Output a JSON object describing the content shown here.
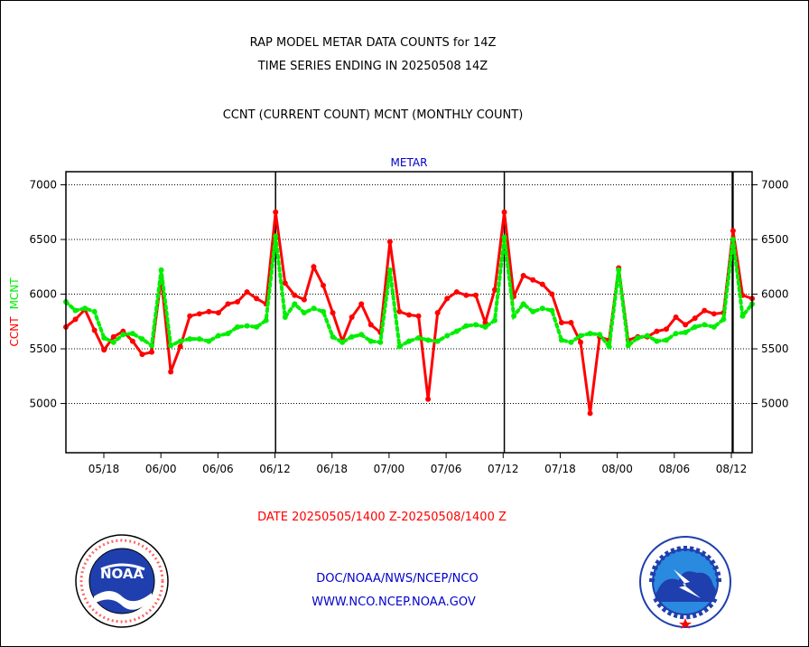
{
  "title_line1": "RAP MODEL METAR DATA COUNTS for 14Z",
  "title_line2": "TIME SERIES ENDING IN 20250508 14Z",
  "subtitle": "CCNT (CURRENT COUNT) MCNT (MONTHLY COUNT)",
  "date_range": "DATE 20250505/1400 Z-20250508/1400 Z",
  "footer_org": "DOC/NOAA/NWS/NCEP/NCO",
  "footer_url": "WWW.NCO.NCEP.NOAA.GOV",
  "noaa_logo_text": "NOAA",
  "nws_logo_text": "NATIONAL WEATHER SERVICE",
  "colors": {
    "ccnt": "#ff0000",
    "mcnt": "#00ee00",
    "panel_label": "#0000cc",
    "footer": "#0000cc",
    "date": "#ff0000"
  },
  "chart_data": {
    "type": "line",
    "title": "METAR",
    "ylabel_left": [
      "CCNT",
      "MCNT"
    ],
    "ylim": [
      4550,
      7120
    ],
    "yticks": [
      5000,
      5500,
      6000,
      6500,
      7000
    ],
    "yticks_right": [
      5000,
      5500,
      6000,
      6500,
      7000
    ],
    "x_tick_labels": [
      "05/18",
      "06/00",
      "06/06",
      "06/12",
      "06/18",
      "07/00",
      "07/06",
      "07/12",
      "07/18",
      "08/00",
      "08/06",
      "08/12"
    ],
    "grid": true,
    "series": [
      {
        "name": "CCNT",
        "color": "#ff0000",
        "style": "solid",
        "values": [
          5700,
          5770,
          5860,
          5670,
          5490,
          5610,
          5660,
          5570,
          5450,
          5470,
          6150,
          5290,
          5520,
          5800,
          5820,
          5840,
          5830,
          5910,
          5930,
          6020,
          5960,
          5910,
          6750,
          6100,
          5990,
          5950,
          6250,
          6080,
          5830,
          5570,
          5790,
          5910,
          5720,
          5650,
          6480,
          5840,
          5810,
          5800,
          5040,
          5830,
          5960,
          6020,
          5990,
          5990,
          5740,
          6040,
          6750,
          5980,
          6170,
          6130,
          6090,
          6000,
          5740,
          5740,
          5560,
          4910,
          5610,
          5580,
          6240,
          5580,
          5610,
          5610,
          5660,
          5680,
          5790,
          5720,
          5780,
          5850,
          5820,
          5830,
          6580,
          5990,
          5960
        ]
      },
      {
        "name": "MCNT",
        "color": "#00ee00",
        "style": "dotted",
        "values": [
          5930,
          5850,
          5870,
          5840,
          5600,
          5560,
          5630,
          5640,
          5590,
          5530,
          6220,
          5530,
          5570,
          5590,
          5590,
          5570,
          5620,
          5640,
          5700,
          5710,
          5700,
          5760,
          6530,
          5790,
          5910,
          5830,
          5870,
          5840,
          5610,
          5560,
          5610,
          5630,
          5570,
          5560,
          6220,
          5520,
          5570,
          5600,
          5580,
          5570,
          5620,
          5660,
          5710,
          5720,
          5700,
          5760,
          6520,
          5800,
          5910,
          5840,
          5870,
          5850,
          5580,
          5560,
          5620,
          5640,
          5630,
          5520,
          6220,
          5530,
          5600,
          5620,
          5570,
          5580,
          5640,
          5650,
          5700,
          5720,
          5700,
          5770,
          6500,
          5800,
          5910
        ]
      }
    ],
    "vertical_markers": [
      22,
      46,
      70
    ]
  }
}
